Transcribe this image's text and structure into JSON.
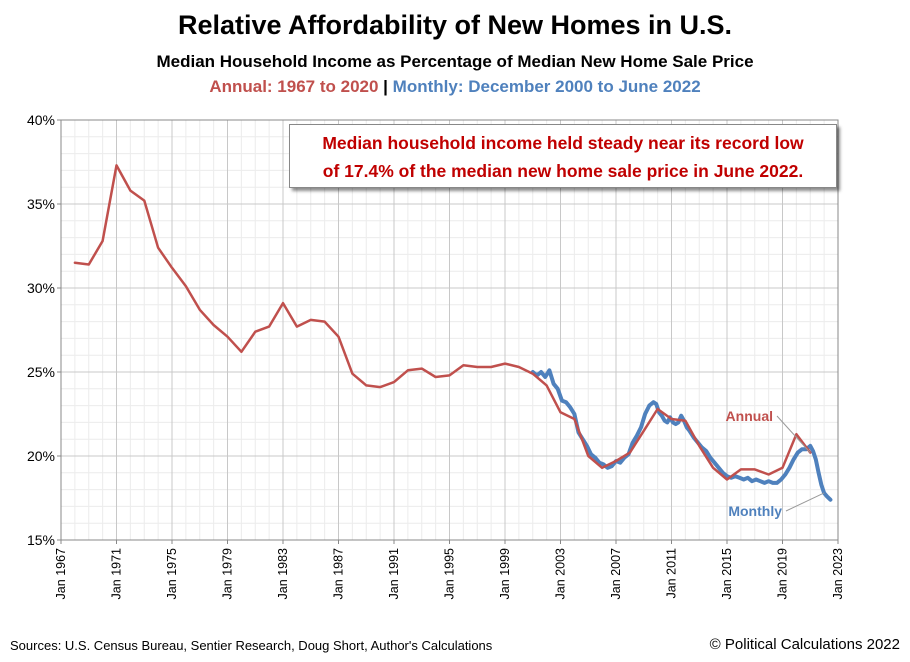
{
  "header": {
    "title": "Relative Affordability of New Homes in U.S.",
    "subtitle": "Median Household Income as Percentage of Median New Home Sale Price",
    "annual_range": "Annual:  1967 to 2020",
    "separator": "|",
    "monthly_range": "Monthly:  December 2000 to June 2022"
  },
  "callout": {
    "line1": "Median household income held steady near its record low",
    "line2": "of 17.4% of the median new home sale price in June 2022."
  },
  "footer": {
    "sources": "Sources: U.S. Census Bureau, Sentier Research, Doug Short, Author's Calculations",
    "copyright": "© Political Calculations 2022"
  },
  "colors": {
    "annual": "#c0504d",
    "monthly": "#4f81bd",
    "callout_text": "#c00000"
  },
  "chart_data": {
    "type": "line",
    "title": "Relative Affordability of New Homes in U.S.",
    "xlabel": "",
    "ylabel": "",
    "xlim": [
      1967,
      2023
    ],
    "ylim": [
      15,
      40
    ],
    "grid": true,
    "x_tick_labels": [
      "Jan 1967",
      "Jan 1971",
      "Jan 1975",
      "Jan 1979",
      "Jan 1983",
      "Jan 1987",
      "Jan 1991",
      "Jan 1995",
      "Jan 1999",
      "Jan 2003",
      "Jan 2007",
      "Jan 2011",
      "Jan 2015",
      "Jan 2019",
      "Jan 2023"
    ],
    "x_tick_values": [
      1967,
      1971,
      1975,
      1979,
      1983,
      1987,
      1991,
      1995,
      1999,
      2003,
      2007,
      2011,
      2015,
      2019,
      2023
    ],
    "y_tick_labels": [
      "15%",
      "20%",
      "25%",
      "30%",
      "35%",
      "40%"
    ],
    "y_tick_values": [
      15,
      20,
      25,
      30,
      35,
      40
    ],
    "series": [
      {
        "name": "Annual",
        "label": "Annual",
        "x": [
          1968,
          1969,
          1970,
          1971,
          1972,
          1973,
          1974,
          1975,
          1976,
          1977,
          1978,
          1979,
          1980,
          1981,
          1982,
          1983,
          1984,
          1985,
          1986,
          1987,
          1988,
          1989,
          1990,
          1991,
          1992,
          1993,
          1994,
          1995,
          1996,
          1997,
          1998,
          1999,
          2000,
          2001,
          2002,
          2003,
          2004,
          2005,
          2006,
          2007,
          2008,
          2009,
          2010,
          2011,
          2012,
          2013,
          2014,
          2015,
          2016,
          2017,
          2018,
          2019,
          2020,
          2021
        ],
        "values": [
          31.5,
          31.4,
          32.8,
          37.3,
          35.8,
          35.2,
          32.4,
          31.2,
          30.1,
          28.7,
          27.8,
          27.1,
          26.2,
          27.4,
          27.7,
          29.1,
          27.7,
          28.1,
          28.0,
          27.1,
          24.9,
          24.2,
          24.1,
          24.4,
          25.1,
          25.2,
          24.7,
          24.8,
          25.4,
          25.3,
          25.3,
          25.5,
          25.3,
          24.9,
          24.2,
          22.6,
          22.2,
          20.0,
          19.3,
          19.7,
          20.2,
          21.5,
          22.8,
          22.2,
          22.1,
          20.6,
          19.3,
          18.6,
          19.2,
          19.2,
          18.9,
          19.3,
          21.3,
          20.2
        ]
      },
      {
        "name": "Monthly",
        "label": "Monthly",
        "x": [
          2001.0,
          2001.3,
          2001.6,
          2001.9,
          2002.2,
          2002.5,
          2002.8,
          2003.1,
          2003.4,
          2003.7,
          2004.0,
          2004.3,
          2004.6,
          2004.9,
          2005.2,
          2005.5,
          2005.8,
          2006.1,
          2006.4,
          2006.7,
          2007.0,
          2007.3,
          2007.6,
          2007.9,
          2008.2,
          2008.5,
          2008.8,
          2009.1,
          2009.4,
          2009.7,
          2009.9,
          2010.1,
          2010.3,
          2010.5,
          2010.7,
          2010.9,
          2011.1,
          2011.3,
          2011.5,
          2011.7,
          2011.9,
          2012.1,
          2012.3,
          2012.6,
          2012.9,
          2013.2,
          2013.5,
          2013.8,
          2014.1,
          2014.4,
          2014.7,
          2015.0,
          2015.3,
          2015.6,
          2015.9,
          2016.2,
          2016.5,
          2016.8,
          2017.1,
          2017.4,
          2017.7,
          2018.0,
          2018.3,
          2018.6,
          2018.9,
          2019.2,
          2019.5,
          2019.8,
          2020.1,
          2020.4,
          2020.7,
          2021.0,
          2021.2,
          2021.4,
          2021.6,
          2021.8,
          2022.0,
          2022.2,
          2022.45
        ],
        "values": [
          25.0,
          24.8,
          25.0,
          24.7,
          25.1,
          24.3,
          24.0,
          23.3,
          23.2,
          22.9,
          22.5,
          21.4,
          21.0,
          20.6,
          20.1,
          19.9,
          19.6,
          19.5,
          19.3,
          19.4,
          19.7,
          19.6,
          19.9,
          20.1,
          20.8,
          21.2,
          21.7,
          22.5,
          23.0,
          23.2,
          23.1,
          22.6,
          22.4,
          22.1,
          22.0,
          22.3,
          22.0,
          21.9,
          22.0,
          22.4,
          22.1,
          21.7,
          21.5,
          21.1,
          20.8,
          20.5,
          20.3,
          19.9,
          19.6,
          19.3,
          19.0,
          18.8,
          18.7,
          18.8,
          18.7,
          18.6,
          18.7,
          18.5,
          18.6,
          18.5,
          18.4,
          18.5,
          18.4,
          18.4,
          18.6,
          18.9,
          19.3,
          19.8,
          20.2,
          20.4,
          20.4,
          20.6,
          20.3,
          19.8,
          19.0,
          18.3,
          17.8,
          17.6,
          17.4
        ]
      }
    ]
  }
}
